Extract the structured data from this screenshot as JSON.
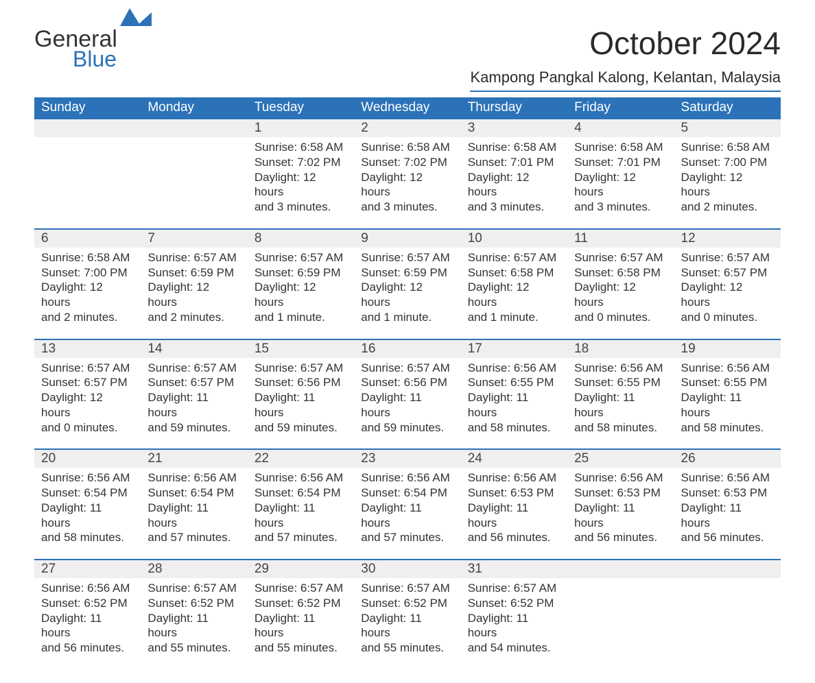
{
  "logo": {
    "word1": "General",
    "word2": "Blue",
    "text_color": "#333333",
    "accent_color": "#2b72b8"
  },
  "title": "October 2024",
  "location": "Kampong Pangkal Kalong, Kelantan, Malaysia",
  "colors": {
    "header_bg": "#2b72b8",
    "header_text": "#ffffff",
    "daynum_bg": "#efefef",
    "rule": "#2b72b8",
    "body_text": "#333333",
    "bg": "#ffffff"
  },
  "fonts": {
    "title_size": 46,
    "location_size": 22,
    "header_size": 19,
    "body_size": 17
  },
  "columns": [
    "Sunday",
    "Monday",
    "Tuesday",
    "Wednesday",
    "Thursday",
    "Friday",
    "Saturday"
  ],
  "weeks": [
    [
      null,
      null,
      {
        "n": "1",
        "sr": "Sunrise: 6:58 AM",
        "ss": "Sunset: 7:02 PM",
        "d1": "Daylight: 12 hours",
        "d2": "and 3 minutes."
      },
      {
        "n": "2",
        "sr": "Sunrise: 6:58 AM",
        "ss": "Sunset: 7:02 PM",
        "d1": "Daylight: 12 hours",
        "d2": "and 3 minutes."
      },
      {
        "n": "3",
        "sr": "Sunrise: 6:58 AM",
        "ss": "Sunset: 7:01 PM",
        "d1": "Daylight: 12 hours",
        "d2": "and 3 minutes."
      },
      {
        "n": "4",
        "sr": "Sunrise: 6:58 AM",
        "ss": "Sunset: 7:01 PM",
        "d1": "Daylight: 12 hours",
        "d2": "and 3 minutes."
      },
      {
        "n": "5",
        "sr": "Sunrise: 6:58 AM",
        "ss": "Sunset: 7:00 PM",
        "d1": "Daylight: 12 hours",
        "d2": "and 2 minutes."
      }
    ],
    [
      {
        "n": "6",
        "sr": "Sunrise: 6:58 AM",
        "ss": "Sunset: 7:00 PM",
        "d1": "Daylight: 12 hours",
        "d2": "and 2 minutes."
      },
      {
        "n": "7",
        "sr": "Sunrise: 6:57 AM",
        "ss": "Sunset: 6:59 PM",
        "d1": "Daylight: 12 hours",
        "d2": "and 2 minutes."
      },
      {
        "n": "8",
        "sr": "Sunrise: 6:57 AM",
        "ss": "Sunset: 6:59 PM",
        "d1": "Daylight: 12 hours",
        "d2": "and 1 minute."
      },
      {
        "n": "9",
        "sr": "Sunrise: 6:57 AM",
        "ss": "Sunset: 6:59 PM",
        "d1": "Daylight: 12 hours",
        "d2": "and 1 minute."
      },
      {
        "n": "10",
        "sr": "Sunrise: 6:57 AM",
        "ss": "Sunset: 6:58 PM",
        "d1": "Daylight: 12 hours",
        "d2": "and 1 minute."
      },
      {
        "n": "11",
        "sr": "Sunrise: 6:57 AM",
        "ss": "Sunset: 6:58 PM",
        "d1": "Daylight: 12 hours",
        "d2": "and 0 minutes."
      },
      {
        "n": "12",
        "sr": "Sunrise: 6:57 AM",
        "ss": "Sunset: 6:57 PM",
        "d1": "Daylight: 12 hours",
        "d2": "and 0 minutes."
      }
    ],
    [
      {
        "n": "13",
        "sr": "Sunrise: 6:57 AM",
        "ss": "Sunset: 6:57 PM",
        "d1": "Daylight: 12 hours",
        "d2": "and 0 minutes."
      },
      {
        "n": "14",
        "sr": "Sunrise: 6:57 AM",
        "ss": "Sunset: 6:57 PM",
        "d1": "Daylight: 11 hours",
        "d2": "and 59 minutes."
      },
      {
        "n": "15",
        "sr": "Sunrise: 6:57 AM",
        "ss": "Sunset: 6:56 PM",
        "d1": "Daylight: 11 hours",
        "d2": "and 59 minutes."
      },
      {
        "n": "16",
        "sr": "Sunrise: 6:57 AM",
        "ss": "Sunset: 6:56 PM",
        "d1": "Daylight: 11 hours",
        "d2": "and 59 minutes."
      },
      {
        "n": "17",
        "sr": "Sunrise: 6:56 AM",
        "ss": "Sunset: 6:55 PM",
        "d1": "Daylight: 11 hours",
        "d2": "and 58 minutes."
      },
      {
        "n": "18",
        "sr": "Sunrise: 6:56 AM",
        "ss": "Sunset: 6:55 PM",
        "d1": "Daylight: 11 hours",
        "d2": "and 58 minutes."
      },
      {
        "n": "19",
        "sr": "Sunrise: 6:56 AM",
        "ss": "Sunset: 6:55 PM",
        "d1": "Daylight: 11 hours",
        "d2": "and 58 minutes."
      }
    ],
    [
      {
        "n": "20",
        "sr": "Sunrise: 6:56 AM",
        "ss": "Sunset: 6:54 PM",
        "d1": "Daylight: 11 hours",
        "d2": "and 58 minutes."
      },
      {
        "n": "21",
        "sr": "Sunrise: 6:56 AM",
        "ss": "Sunset: 6:54 PM",
        "d1": "Daylight: 11 hours",
        "d2": "and 57 minutes."
      },
      {
        "n": "22",
        "sr": "Sunrise: 6:56 AM",
        "ss": "Sunset: 6:54 PM",
        "d1": "Daylight: 11 hours",
        "d2": "and 57 minutes."
      },
      {
        "n": "23",
        "sr": "Sunrise: 6:56 AM",
        "ss": "Sunset: 6:54 PM",
        "d1": "Daylight: 11 hours",
        "d2": "and 57 minutes."
      },
      {
        "n": "24",
        "sr": "Sunrise: 6:56 AM",
        "ss": "Sunset: 6:53 PM",
        "d1": "Daylight: 11 hours",
        "d2": "and 56 minutes."
      },
      {
        "n": "25",
        "sr": "Sunrise: 6:56 AM",
        "ss": "Sunset: 6:53 PM",
        "d1": "Daylight: 11 hours",
        "d2": "and 56 minutes."
      },
      {
        "n": "26",
        "sr": "Sunrise: 6:56 AM",
        "ss": "Sunset: 6:53 PM",
        "d1": "Daylight: 11 hours",
        "d2": "and 56 minutes."
      }
    ],
    [
      {
        "n": "27",
        "sr": "Sunrise: 6:56 AM",
        "ss": "Sunset: 6:52 PM",
        "d1": "Daylight: 11 hours",
        "d2": "and 56 minutes."
      },
      {
        "n": "28",
        "sr": "Sunrise: 6:57 AM",
        "ss": "Sunset: 6:52 PM",
        "d1": "Daylight: 11 hours",
        "d2": "and 55 minutes."
      },
      {
        "n": "29",
        "sr": "Sunrise: 6:57 AM",
        "ss": "Sunset: 6:52 PM",
        "d1": "Daylight: 11 hours",
        "d2": "and 55 minutes."
      },
      {
        "n": "30",
        "sr": "Sunrise: 6:57 AM",
        "ss": "Sunset: 6:52 PM",
        "d1": "Daylight: 11 hours",
        "d2": "and 55 minutes."
      },
      {
        "n": "31",
        "sr": "Sunrise: 6:57 AM",
        "ss": "Sunset: 6:52 PM",
        "d1": "Daylight: 11 hours",
        "d2": "and 54 minutes."
      },
      null,
      null
    ]
  ]
}
